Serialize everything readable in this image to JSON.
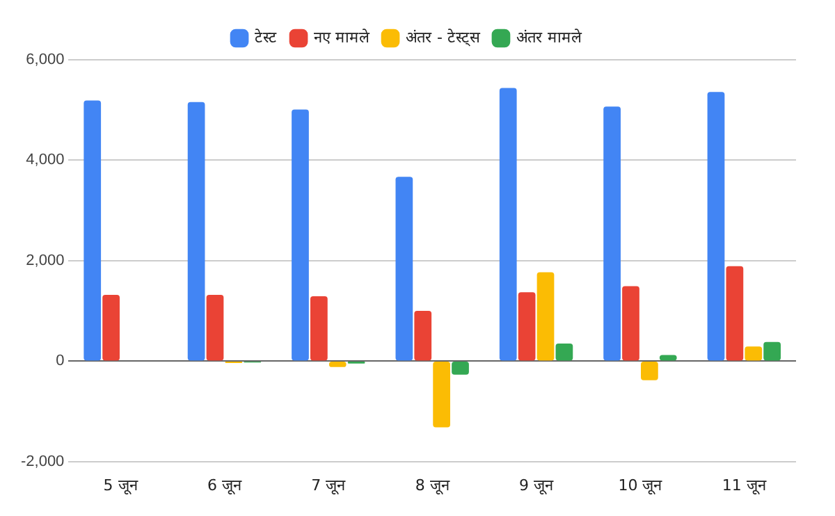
{
  "chart_data": {
    "type": "bar",
    "categories": [
      "5 जून",
      "6 जून",
      "7 जून",
      "8 जून",
      "9 जून",
      "10 जून",
      "11 जून"
    ],
    "series": [
      {
        "name": "टेस्ट",
        "color": "#4285f4",
        "values": [
          5190,
          5160,
          5010,
          3670,
          5440,
          5070,
          5360
        ]
      },
      {
        "name": "नए मामले",
        "color": "#ea4335",
        "values": [
          1320,
          1320,
          1290,
          1000,
          1370,
          1490,
          1890
        ]
      },
      {
        "name": "अंतर - टेस्ट्स",
        "color": "#fbbc04",
        "values": [
          null,
          -40,
          -120,
          -1320,
          1770,
          -380,
          290
        ]
      },
      {
        "name": "अंतर मामले",
        "color": "#34a853",
        "values": [
          null,
          -30,
          -50,
          -270,
          350,
          120,
          380
        ]
      }
    ],
    "ylim": [
      -2000,
      6000
    ],
    "yticks": [
      {
        "value": -2000,
        "label": "-2,000"
      },
      {
        "value": 0,
        "label": "0"
      },
      {
        "value": 2000,
        "label": "2,000"
      },
      {
        "value": 4000,
        "label": "4,000"
      },
      {
        "value": 6000,
        "label": "6,000"
      }
    ],
    "grid": "y",
    "legend": "top"
  }
}
